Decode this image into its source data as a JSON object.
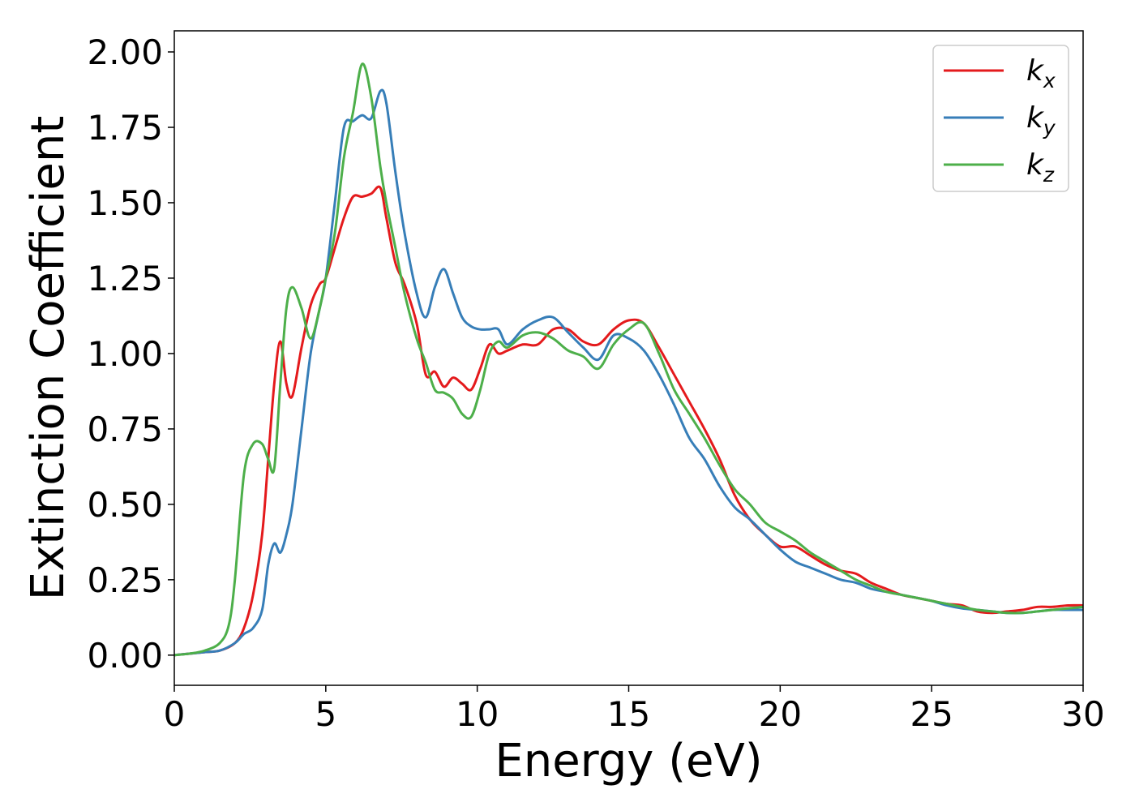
{
  "chart_data": {
    "type": "line",
    "title": "",
    "xlabel": "Energy (eV)",
    "ylabel": "Extinction Coefficient",
    "xlim": [
      0,
      30
    ],
    "ylim": [
      -0.1,
      2.07
    ],
    "xticks": [
      0,
      5,
      10,
      15,
      20,
      25,
      30
    ],
    "xtick_labels": [
      "0",
      "5",
      "10",
      "15",
      "20",
      "25",
      "30"
    ],
    "yticks": [
      0,
      0.25,
      0.5,
      0.75,
      1.0,
      1.25,
      1.5,
      1.75,
      2.0
    ],
    "ytick_labels": [
      "0.00",
      "0.25",
      "0.50",
      "0.75",
      "1.00",
      "1.25",
      "1.50",
      "1.75",
      "2.00"
    ],
    "grid": false,
    "legend_position": "top-right",
    "series": [
      {
        "name": "k_x",
        "legend_base": "k",
        "legend_sub": "x",
        "color": "#e41a1c",
        "x": [
          0,
          0.5,
          1.0,
          1.5,
          2.0,
          2.3,
          2.6,
          2.9,
          3.1,
          3.3,
          3.5,
          3.7,
          3.9,
          4.2,
          4.5,
          4.8,
          5.0,
          5.3,
          5.6,
          5.9,
          6.2,
          6.5,
          6.8,
          7.0,
          7.3,
          7.6,
          8.0,
          8.3,
          8.6,
          8.9,
          9.2,
          9.5,
          9.8,
          10.1,
          10.4,
          10.7,
          11.0,
          11.5,
          12.0,
          12.5,
          13.0,
          13.5,
          14.0,
          14.5,
          15.0,
          15.5,
          16.0,
          16.5,
          17.0,
          17.5,
          18.0,
          18.5,
          19.0,
          19.5,
          20.0,
          20.5,
          21.0,
          21.5,
          22.0,
          22.5,
          23.0,
          23.5,
          24.0,
          24.5,
          25.0,
          25.5,
          26.0,
          26.5,
          27.0,
          27.5,
          28.0,
          28.5,
          29.0,
          29.5,
          30.0
        ],
        "y": [
          0.0,
          0.005,
          0.01,
          0.015,
          0.04,
          0.09,
          0.2,
          0.4,
          0.65,
          0.9,
          1.04,
          0.9,
          0.86,
          1.02,
          1.16,
          1.23,
          1.25,
          1.35,
          1.45,
          1.52,
          1.52,
          1.53,
          1.55,
          1.45,
          1.3,
          1.23,
          1.1,
          0.93,
          0.94,
          0.89,
          0.92,
          0.9,
          0.88,
          0.95,
          1.03,
          1.0,
          1.01,
          1.03,
          1.03,
          1.08,
          1.08,
          1.04,
          1.03,
          1.08,
          1.11,
          1.1,
          1.02,
          0.93,
          0.84,
          0.75,
          0.65,
          0.53,
          0.45,
          0.4,
          0.36,
          0.36,
          0.33,
          0.3,
          0.28,
          0.27,
          0.24,
          0.22,
          0.2,
          0.19,
          0.18,
          0.17,
          0.165,
          0.145,
          0.14,
          0.145,
          0.15,
          0.16,
          0.16,
          0.165,
          0.165
        ]
      },
      {
        "name": "k_y",
        "legend_base": "k",
        "legend_sub": "y",
        "color": "#377eb8",
        "x": [
          0,
          0.5,
          1.0,
          1.5,
          2.0,
          2.3,
          2.6,
          2.9,
          3.1,
          3.3,
          3.5,
          3.7,
          3.9,
          4.2,
          4.5,
          4.8,
          5.0,
          5.3,
          5.6,
          5.9,
          6.2,
          6.5,
          6.8,
          7.0,
          7.3,
          7.6,
          8.0,
          8.3,
          8.6,
          8.9,
          9.2,
          9.5,
          9.8,
          10.1,
          10.4,
          10.7,
          11.0,
          11.5,
          12.0,
          12.5,
          13.0,
          13.5,
          14.0,
          14.5,
          15.0,
          15.5,
          16.0,
          16.5,
          17.0,
          17.5,
          18.0,
          18.5,
          19.0,
          19.5,
          20.0,
          20.5,
          21.0,
          21.5,
          22.0,
          22.5,
          23.0,
          23.5,
          24.0,
          24.5,
          25.0,
          25.5,
          26.0,
          26.5,
          27.0,
          27.5,
          28.0,
          28.5,
          29.0,
          29.5,
          30.0
        ],
        "y": [
          0.0,
          0.005,
          0.01,
          0.015,
          0.04,
          0.07,
          0.09,
          0.15,
          0.3,
          0.37,
          0.34,
          0.4,
          0.5,
          0.75,
          1.0,
          1.15,
          1.25,
          1.5,
          1.75,
          1.77,
          1.79,
          1.78,
          1.87,
          1.83,
          1.6,
          1.4,
          1.2,
          1.12,
          1.22,
          1.28,
          1.2,
          1.12,
          1.09,
          1.08,
          1.08,
          1.08,
          1.03,
          1.08,
          1.11,
          1.12,
          1.07,
          1.02,
          0.98,
          1.06,
          1.05,
          1.01,
          0.93,
          0.83,
          0.72,
          0.65,
          0.56,
          0.49,
          0.45,
          0.4,
          0.35,
          0.31,
          0.29,
          0.27,
          0.25,
          0.24,
          0.22,
          0.21,
          0.2,
          0.19,
          0.18,
          0.165,
          0.155,
          0.15,
          0.145,
          0.14,
          0.14,
          0.145,
          0.15,
          0.15,
          0.15
        ]
      },
      {
        "name": "k_z",
        "legend_base": "k",
        "legend_sub": "z",
        "color": "#4daf4a",
        "x": [
          0,
          0.5,
          1.0,
          1.5,
          1.8,
          2.0,
          2.3,
          2.6,
          2.9,
          3.1,
          3.3,
          3.5,
          3.7,
          3.9,
          4.2,
          4.5,
          4.8,
          5.0,
          5.3,
          5.6,
          5.9,
          6.2,
          6.5,
          6.8,
          7.0,
          7.3,
          7.6,
          8.0,
          8.3,
          8.6,
          8.9,
          9.2,
          9.5,
          9.8,
          10.1,
          10.4,
          10.7,
          11.0,
          11.5,
          12.0,
          12.5,
          13.0,
          13.5,
          14.0,
          14.5,
          15.0,
          15.5,
          16.0,
          16.5,
          17.0,
          17.5,
          18.0,
          18.5,
          19.0,
          19.5,
          20.0,
          20.5,
          21.0,
          21.5,
          22.0,
          22.5,
          23.0,
          23.5,
          24.0,
          24.5,
          25.0,
          25.5,
          26.0,
          26.5,
          27.0,
          27.5,
          28.0,
          28.5,
          29.0,
          29.5,
          30.0
        ],
        "y": [
          0.0,
          0.005,
          0.015,
          0.04,
          0.1,
          0.25,
          0.6,
          0.7,
          0.7,
          0.65,
          0.62,
          0.9,
          1.15,
          1.22,
          1.15,
          1.05,
          1.15,
          1.25,
          1.4,
          1.65,
          1.8,
          1.96,
          1.85,
          1.62,
          1.5,
          1.35,
          1.2,
          1.05,
          0.97,
          0.88,
          0.87,
          0.85,
          0.8,
          0.79,
          0.88,
          1.0,
          1.04,
          1.02,
          1.06,
          1.07,
          1.05,
          1.01,
          0.99,
          0.95,
          1.03,
          1.08,
          1.1,
          1.0,
          0.88,
          0.8,
          0.72,
          0.63,
          0.55,
          0.5,
          0.44,
          0.41,
          0.38,
          0.34,
          0.31,
          0.28,
          0.25,
          0.23,
          0.21,
          0.2,
          0.19,
          0.18,
          0.17,
          0.16,
          0.15,
          0.145,
          0.14,
          0.14,
          0.145,
          0.15,
          0.155,
          0.16
        ]
      }
    ]
  }
}
